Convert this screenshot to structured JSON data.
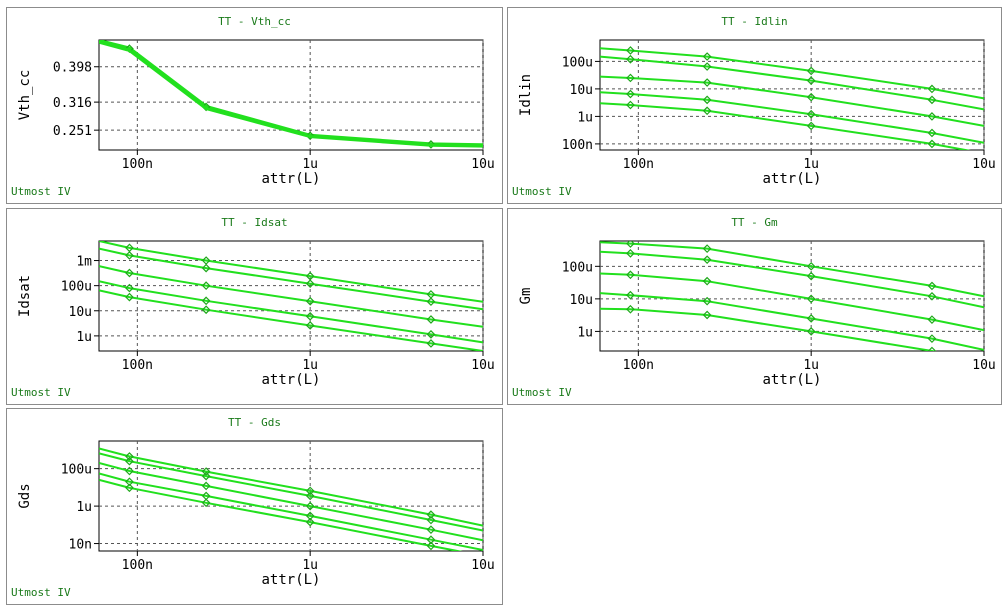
{
  "footer_text": "Utmost IV",
  "colors": {
    "curve": "#22e01e",
    "grid": "#555555",
    "frame": "#8c8c8c",
    "title": "#1a7a1a"
  },
  "chart_data": [
    {
      "id": "vth",
      "type": "line",
      "title": "TT - Vth_cc",
      "xlabel": "attr(L)",
      "ylabel": "Vth_cc",
      "xscale": "log",
      "yscale": "linear",
      "xlim": [
        6e-08,
        1e-05
      ],
      "ylim": [
        0.205,
        0.46
      ],
      "grid": true,
      "xticks": [
        {
          "v": 1e-07,
          "label": "100n"
        },
        {
          "v": 1e-06,
          "label": "1u"
        },
        {
          "v": 1e-05,
          "label": "10u"
        }
      ],
      "yticks": [
        {
          "v": 0.251,
          "label": "0.251"
        },
        {
          "v": 0.316,
          "label": "0.316"
        },
        {
          "v": 0.398,
          "label": "0.398"
        }
      ],
      "series": [
        {
          "x": [
            6e-08,
            9e-08,
            2.5e-07,
            1e-06,
            5e-06,
            1e-05
          ],
          "y": [
            0.458,
            0.44,
            0.305,
            0.238,
            0.218,
            0.216
          ],
          "markers": [
            9e-08,
            2.5e-07,
            1e-06,
            5e-06
          ],
          "width": 4
        },
        {
          "x": [
            6e-08,
            9e-08,
            2.5e-07,
            1e-06,
            5e-06,
            1e-05
          ],
          "y": [
            0.455,
            0.436,
            0.301,
            0.236,
            0.216,
            0.214
          ],
          "markers": [],
          "width": 3
        }
      ]
    },
    {
      "id": "idlin",
      "type": "line",
      "title": "TT - Idlin",
      "xlabel": "attr(L)",
      "ylabel": "Idlin",
      "xscale": "log",
      "yscale": "log",
      "xlim": [
        6e-08,
        1e-05
      ],
      "ylim": [
        6e-08,
        0.0006
      ],
      "grid": true,
      "xticks": [
        {
          "v": 1e-07,
          "label": "100n"
        },
        {
          "v": 1e-06,
          "label": "1u"
        },
        {
          "v": 1e-05,
          "label": "10u"
        }
      ],
      "yticks": [
        {
          "v": 1e-07,
          "label": "100n"
        },
        {
          "v": 1e-06,
          "label": "1u"
        },
        {
          "v": 1e-05,
          "label": "10u"
        },
        {
          "v": 0.0001,
          "label": "100u"
        }
      ],
      "series": [
        {
          "x": [
            6e-08,
            9e-08,
            2.5e-07,
            1e-06,
            5e-06,
            1e-05
          ],
          "y": [
            0.0003,
            0.00025,
            0.00015,
            4.5e-05,
            1e-05,
            4.5e-06
          ],
          "markers": [
            9e-08,
            2.5e-07,
            1e-06,
            5e-06
          ]
        },
        {
          "x": [
            6e-08,
            9e-08,
            2.5e-07,
            1e-06,
            5e-06,
            1e-05
          ],
          "y": [
            0.00015,
            0.00012,
            6.5e-05,
            2e-05,
            4e-06,
            1.8e-06
          ],
          "markers": [
            9e-08,
            2.5e-07,
            1e-06,
            5e-06
          ]
        },
        {
          "x": [
            6e-08,
            9e-08,
            2.5e-07,
            1e-06,
            5e-06,
            1e-05
          ],
          "y": [
            2.8e-05,
            2.5e-05,
            1.7e-05,
            5e-06,
            1e-06,
            4.5e-07
          ],
          "markers": [
            9e-08,
            2.5e-07,
            1e-06,
            5e-06
          ]
        },
        {
          "x": [
            6e-08,
            9e-08,
            2.5e-07,
            1e-06,
            5e-06,
            1e-05
          ],
          "y": [
            7.5e-06,
            6.5e-06,
            4e-06,
            1.2e-06,
            2.5e-07,
            1.1e-07
          ],
          "markers": [
            9e-08,
            2.5e-07,
            1e-06,
            5e-06
          ]
        },
        {
          "x": [
            6e-08,
            9e-08,
            2.5e-07,
            1e-06,
            5e-06,
            1e-05
          ],
          "y": [
            3e-06,
            2.6e-06,
            1.6e-06,
            4.5e-07,
            1e-07,
            4.5e-08
          ],
          "markers": [
            9e-08,
            2.5e-07,
            1e-06,
            5e-06
          ]
        }
      ]
    },
    {
      "id": "idsat",
      "type": "line",
      "title": "TT - Idsat",
      "xlabel": "attr(L)",
      "ylabel": "Idsat",
      "xscale": "log",
      "yscale": "log",
      "xlim": [
        6e-08,
        1e-05
      ],
      "ylim": [
        2.5e-07,
        0.006
      ],
      "grid": true,
      "xticks": [
        {
          "v": 1e-07,
          "label": "100n"
        },
        {
          "v": 1e-06,
          "label": "1u"
        },
        {
          "v": 1e-05,
          "label": "10u"
        }
      ],
      "yticks": [
        {
          "v": 1e-06,
          "label": "1u"
        },
        {
          "v": 1e-05,
          "label": "10u"
        },
        {
          "v": 0.0001,
          "label": "100u"
        },
        {
          "v": 0.001,
          "label": "1m"
        }
      ],
      "series": [
        {
          "x": [
            6e-08,
            9e-08,
            2.5e-07,
            1e-06,
            5e-06,
            1e-05
          ],
          "y": [
            0.006,
            0.0032,
            0.001,
            0.00024,
            4.5e-05,
            2.3e-05
          ],
          "markers": [
            9e-08,
            2.5e-07,
            1e-06,
            5e-06
          ]
        },
        {
          "x": [
            6e-08,
            9e-08,
            2.5e-07,
            1e-06,
            5e-06,
            1e-05
          ],
          "y": [
            0.003,
            0.0016,
            0.0005,
            0.00012,
            2.3e-05,
            1.15e-05
          ],
          "markers": [
            9e-08,
            2.5e-07,
            1e-06,
            5e-06
          ]
        },
        {
          "x": [
            6e-08,
            9e-08,
            2.5e-07,
            1e-06,
            5e-06,
            1e-05
          ],
          "y": [
            0.0006,
            0.00032,
            0.0001,
            2.4e-05,
            4.5e-06,
            2.3e-06
          ],
          "markers": [
            9e-08,
            2.5e-07,
            1e-06,
            5e-06
          ]
        },
        {
          "x": [
            6e-08,
            9e-08,
            2.5e-07,
            1e-06,
            5e-06,
            1e-05
          ],
          "y": [
            0.00015,
            8e-05,
            2.5e-05,
            6e-06,
            1.15e-06,
            5.5e-07
          ],
          "markers": [
            9e-08,
            2.5e-07,
            1e-06,
            5e-06
          ]
        },
        {
          "x": [
            6e-08,
            9e-08,
            2.5e-07,
            1e-06,
            5e-06,
            1e-05
          ],
          "y": [
            6.5e-05,
            3.5e-05,
            1.1e-05,
            2.6e-06,
            5e-07,
            2.5e-07
          ],
          "markers": [
            9e-08,
            2.5e-07,
            1e-06,
            5e-06
          ]
        }
      ]
    },
    {
      "id": "gm",
      "type": "line",
      "title": "TT - Gm",
      "xlabel": "attr(L)",
      "ylabel": "Gm",
      "xscale": "log",
      "yscale": "log",
      "xlim": [
        6e-08,
        1e-05
      ],
      "ylim": [
        2.5e-07,
        0.0006
      ],
      "grid": true,
      "xticks": [
        {
          "v": 1e-07,
          "label": "100n"
        },
        {
          "v": 1e-06,
          "label": "1u"
        },
        {
          "v": 1e-05,
          "label": "10u"
        }
      ],
      "yticks": [
        {
          "v": 1e-06,
          "label": "1u"
        },
        {
          "v": 1e-05,
          "label": "10u"
        },
        {
          "v": 0.0001,
          "label": "100u"
        }
      ],
      "series": [
        {
          "x": [
            6e-08,
            9e-08,
            2.5e-07,
            1e-06,
            5e-06,
            1e-05
          ],
          "y": [
            0.00055,
            0.0005,
            0.00035,
            0.0001,
            2.5e-05,
            1.2e-05
          ],
          "markers": [
            9e-08,
            2.5e-07,
            1e-06,
            5e-06
          ]
        },
        {
          "x": [
            6e-08,
            9e-08,
            2.5e-07,
            1e-06,
            5e-06,
            1e-05
          ],
          "y": [
            0.00028,
            0.00025,
            0.00016,
            5e-05,
            1.2e-05,
            5.5e-06
          ],
          "markers": [
            9e-08,
            2.5e-07,
            1e-06,
            5e-06
          ]
        },
        {
          "x": [
            6e-08,
            9e-08,
            2.5e-07,
            1e-06,
            5e-06,
            1e-05
          ],
          "y": [
            6e-05,
            5.5e-05,
            3.5e-05,
            1e-05,
            2.3e-06,
            1.1e-06
          ],
          "markers": [
            9e-08,
            2.5e-07,
            1e-06,
            5e-06
          ]
        },
        {
          "x": [
            6e-08,
            9e-08,
            2.5e-07,
            1e-06,
            5e-06,
            1e-05
          ],
          "y": [
            1.5e-05,
            1.3e-05,
            8.5e-06,
            2.5e-06,
            6e-07,
            2.7e-07
          ],
          "markers": [
            9e-08,
            2.5e-07,
            1e-06,
            5e-06
          ]
        },
        {
          "x": [
            6e-08,
            9e-08,
            2.5e-07,
            1e-06,
            5e-06,
            1e-05
          ],
          "y": [
            5e-06,
            4.8e-06,
            3.2e-06,
            1e-06,
            2.5e-07,
            1.1e-07
          ],
          "markers": [
            9e-08,
            2.5e-07,
            1e-06,
            5e-06
          ]
        }
      ]
    },
    {
      "id": "gds",
      "type": "line",
      "title": "TT - Gds",
      "xlabel": "attr(L)",
      "ylabel": "Gds",
      "xscale": "log",
      "yscale": "log",
      "xlim": [
        6e-08,
        1e-05
      ],
      "ylim": [
        4e-09,
        0.003
      ],
      "grid": true,
      "xticks": [
        {
          "v": 1e-07,
          "label": "100n"
        },
        {
          "v": 1e-06,
          "label": "1u"
        },
        {
          "v": 1e-05,
          "label": "10u"
        }
      ],
      "yticks": [
        {
          "v": 1e-08,
          "label": "10n"
        },
        {
          "v": 1e-06,
          "label": "1u"
        },
        {
          "v": 0.0001,
          "label": "100u"
        }
      ],
      "series": [
        {
          "x": [
            6e-08,
            9e-08,
            2.5e-07,
            1e-06,
            5e-06,
            1e-05
          ],
          "y": [
            0.0012,
            0.00045,
            7e-05,
            6.5e-06,
            3.5e-07,
            9e-08
          ],
          "markers": [
            9e-08,
            2.5e-07,
            1e-06,
            5e-06
          ]
        },
        {
          "x": [
            6e-08,
            9e-08,
            2.5e-07,
            1e-06,
            5e-06,
            1e-05
          ],
          "y": [
            0.00065,
            0.00025,
            4e-05,
            3.5e-06,
            1.8e-07,
            5e-08
          ],
          "markers": [
            9e-08,
            2.5e-07,
            1e-06,
            5e-06
          ]
        },
        {
          "x": [
            6e-08,
            9e-08,
            2.5e-07,
            1e-06,
            5e-06,
            1e-05
          ],
          "y": [
            0.0002,
            7.5e-05,
            1.2e-05,
            1e-06,
            5.5e-08,
            1.5e-08
          ],
          "markers": [
            9e-08,
            2.5e-07,
            1e-06,
            5e-06
          ]
        },
        {
          "x": [
            6e-08,
            9e-08,
            2.5e-07,
            1e-06,
            5e-06,
            1e-05
          ],
          "y": [
            5.5e-05,
            2e-05,
            3.5e-06,
            3e-07,
            1.6e-08,
            4.5e-09
          ],
          "markers": [
            9e-08,
            2.5e-07,
            1e-06,
            5e-06
          ]
        },
        {
          "x": [
            6e-08,
            9e-08,
            2.5e-07,
            1e-06,
            5e-06,
            1e-05
          ],
          "y": [
            2.5e-05,
            9.5e-06,
            1.5e-06,
            1.4e-07,
            7.5e-09,
            2.2e-09
          ],
          "markers": [
            9e-08,
            2.5e-07,
            1e-06,
            5e-06
          ]
        }
      ]
    }
  ]
}
